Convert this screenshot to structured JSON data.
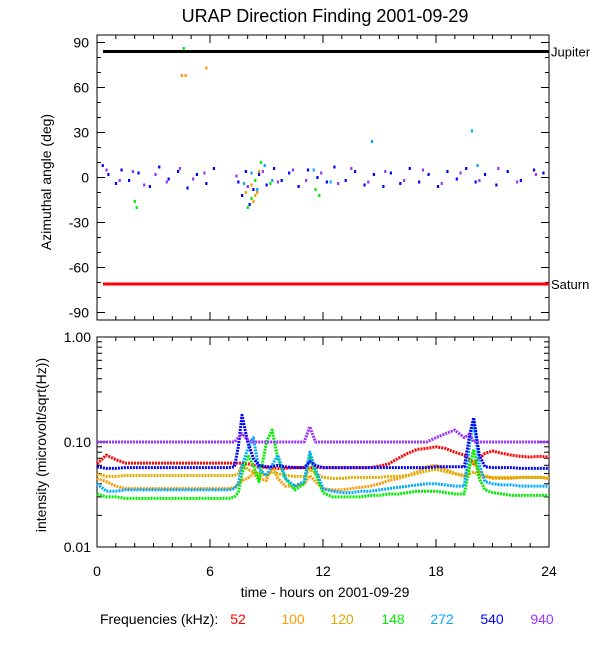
{
  "chart_data": [
    {
      "type": "scatter",
      "title": "URAP Direction Finding  2001-09-29",
      "xlabel": "",
      "ylabel": "Azimuthal angle (deg)",
      "xlim": [
        0,
        24
      ],
      "ylim": [
        -95,
        95
      ],
      "xticks": [
        0,
        6,
        12,
        18,
        24
      ],
      "yticks": [
        90,
        60,
        30,
        0,
        -30,
        -60,
        -90
      ],
      "ytick_labels": [
        "90",
        "60",
        "30",
        "0",
        "-30",
        "-60",
        "-90"
      ],
      "reference_lines": [
        {
          "name": "Jupiter",
          "y": 84,
          "color": "#000000"
        },
        {
          "name": "Saturn",
          "y": -71,
          "color": "#ff0000"
        }
      ],
      "series": [
        {
          "name": "540",
          "color": "#0000ff",
          "points": [
            [
              0.3,
              8
            ],
            [
              0.6,
              2
            ],
            [
              1.0,
              -4
            ],
            [
              1.3,
              5
            ],
            [
              1.7,
              -2
            ],
            [
              2.2,
              3
            ],
            [
              2.8,
              -6
            ],
            [
              3.3,
              7
            ],
            [
              3.8,
              -1
            ],
            [
              4.3,
              4
            ],
            [
              4.8,
              -7
            ],
            [
              5.3,
              2
            ],
            [
              5.8,
              -4
            ],
            [
              6.2,
              6
            ],
            [
              7.5,
              -3
            ],
            [
              7.7,
              -12
            ],
            [
              7.9,
              4
            ],
            [
              8.1,
              -18
            ],
            [
              8.3,
              -8
            ],
            [
              8.6,
              2
            ],
            [
              9.0,
              -5
            ],
            [
              9.4,
              6
            ],
            [
              9.8,
              -2
            ],
            [
              10.2,
              3
            ],
            [
              10.7,
              -6
            ],
            [
              11.2,
              5
            ],
            [
              11.7,
              0
            ],
            [
              12.2,
              -3
            ],
            [
              12.6,
              7
            ],
            [
              13.2,
              -2
            ],
            [
              13.7,
              4
            ],
            [
              14.2,
              -5
            ],
            [
              14.7,
              2
            ],
            [
              15.2,
              -6
            ],
            [
              15.6,
              3
            ],
            [
              16.1,
              -4
            ],
            [
              16.6,
              6
            ],
            [
              17.1,
              -3
            ],
            [
              17.6,
              2
            ],
            [
              18.1,
              -6
            ],
            [
              18.6,
              4
            ],
            [
              19.1,
              -1
            ],
            [
              19.6,
              6
            ],
            [
              20.1,
              -3
            ],
            [
              20.6,
              2
            ],
            [
              21.2,
              -5
            ],
            [
              21.8,
              4
            ],
            [
              22.5,
              -2
            ],
            [
              23.2,
              5
            ],
            [
              23.7,
              3
            ]
          ]
        },
        {
          "name": "940",
          "color": "#9933ff",
          "points": [
            [
              0.5,
              5
            ],
            [
              1.2,
              -2
            ],
            [
              1.9,
              4
            ],
            [
              2.5,
              -5
            ],
            [
              3.1,
              2
            ],
            [
              3.7,
              -3
            ],
            [
              4.4,
              6
            ],
            [
              5.1,
              -1
            ],
            [
              5.7,
              3
            ],
            [
              7.4,
              1
            ],
            [
              8.0,
              -6
            ],
            [
              8.8,
              4
            ],
            [
              9.6,
              -3
            ],
            [
              10.4,
              5
            ],
            [
              11.1,
              -2
            ],
            [
              11.9,
              3
            ],
            [
              12.8,
              -4
            ],
            [
              13.5,
              6
            ],
            [
              14.4,
              -3
            ],
            [
              15.3,
              4
            ],
            [
              16.3,
              -2
            ],
            [
              17.3,
              5
            ],
            [
              18.3,
              -4
            ],
            [
              19.3,
              3
            ],
            [
              20.3,
              -2
            ],
            [
              21.3,
              6
            ],
            [
              22.3,
              -3
            ],
            [
              23.3,
              2
            ]
          ]
        },
        {
          "name": "272",
          "color": "#00aaff",
          "points": [
            [
              7.8,
              -4
            ],
            [
              8.2,
              3
            ],
            [
              8.5,
              -8
            ],
            [
              8.9,
              8
            ],
            [
              9.3,
              -2
            ],
            [
              11.5,
              5
            ],
            [
              12.4,
              -3
            ],
            [
              14.6,
              24
            ],
            [
              19.9,
              31
            ],
            [
              20.2,
              8
            ]
          ]
        },
        {
          "name": "148",
          "color": "#00ee00",
          "points": [
            [
              2.0,
              -16
            ],
            [
              2.1,
              -20
            ],
            [
              4.6,
              86
            ],
            [
              8.0,
              -20
            ],
            [
              8.2,
              -14
            ],
            [
              8.4,
              -2
            ],
            [
              8.7,
              10
            ],
            [
              9.2,
              -4
            ],
            [
              11.6,
              -8
            ],
            [
              11.8,
              -12
            ]
          ]
        },
        {
          "name": "120",
          "color": "#ddaa00",
          "points": [
            [
              7.9,
              -10
            ],
            [
              8.2,
              -5
            ],
            [
              8.4,
              -12
            ],
            [
              8.6,
              4
            ]
          ]
        },
        {
          "name": "100",
          "color": "#ff9900",
          "points": [
            [
              4.5,
              68
            ],
            [
              4.7,
              68
            ],
            [
              5.8,
              73
            ],
            [
              8.3,
              -16
            ],
            [
              8.5,
              -10
            ]
          ]
        },
        {
          "name": "52",
          "color": "#ff0000",
          "points": []
        }
      ]
    },
    {
      "type": "line",
      "title": "",
      "xlabel": "time - hours on 2001-09-29",
      "ylabel": "intensity (microvolt/sqrt(Hz))",
      "yscale": "log",
      "xlim": [
        0,
        24
      ],
      "ylim": [
        0.01,
        1.0
      ],
      "xticks": [
        0,
        6,
        12,
        18,
        24
      ],
      "xtick_labels": [
        "0",
        "6",
        "12",
        "18",
        "24"
      ],
      "yticks": [
        1.0,
        0.1,
        0.01
      ],
      "ytick_labels": [
        "1.00",
        "0.10",
        "0.01"
      ],
      "x": [
        0,
        0.5,
        1,
        1.5,
        2,
        2.5,
        3,
        3.5,
        4,
        4.5,
        5,
        5.5,
        6,
        6.5,
        7,
        7.3,
        7.5,
        7.7,
        8,
        8.3,
        8.6,
        9,
        9.3,
        9.6,
        10,
        10.5,
        11,
        11.3,
        11.6,
        12,
        12.5,
        13,
        13.5,
        14,
        14.5,
        15,
        15.5,
        16,
        16.5,
        17,
        17.5,
        18,
        18.5,
        19,
        19.5,
        19.8,
        20,
        20.3,
        20.6,
        21,
        21.5,
        22,
        22.5,
        23,
        23.5,
        24
      ],
      "series": [
        {
          "name": "52",
          "color": "#ff0000",
          "values": [
            0.062,
            0.075,
            0.068,
            0.063,
            0.063,
            0.063,
            0.063,
            0.063,
            0.063,
            0.063,
            0.063,
            0.063,
            0.063,
            0.063,
            0.063,
            0.063,
            0.063,
            0.063,
            0.062,
            0.06,
            0.058,
            0.057,
            0.056,
            0.056,
            0.056,
            0.057,
            0.057,
            0.057,
            0.057,
            0.057,
            0.057,
            0.057,
            0.057,
            0.057,
            0.057,
            0.059,
            0.062,
            0.07,
            0.078,
            0.085,
            0.087,
            0.09,
            0.087,
            0.08,
            0.075,
            0.068,
            0.062,
            0.07,
            0.078,
            0.082,
            0.078,
            0.075,
            0.073,
            0.072,
            0.073,
            0.072
          ]
        },
        {
          "name": "100",
          "color": "#ff9900",
          "values": [
            0.045,
            0.042,
            0.038,
            0.036,
            0.036,
            0.036,
            0.036,
            0.036,
            0.036,
            0.036,
            0.036,
            0.036,
            0.036,
            0.036,
            0.036,
            0.037,
            0.04,
            0.043,
            0.045,
            0.05,
            0.045,
            0.043,
            0.06,
            0.045,
            0.038,
            0.038,
            0.04,
            0.048,
            0.042,
            0.036,
            0.035,
            0.035,
            0.036,
            0.037,
            0.038,
            0.04,
            0.043,
            0.045,
            0.048,
            0.052,
            0.058,
            0.06,
            0.055,
            0.05,
            0.047,
            0.06,
            0.065,
            0.052,
            0.047,
            0.045,
            0.045,
            0.045,
            0.046,
            0.046,
            0.046,
            0.045
          ]
        },
        {
          "name": "120",
          "color": "#ddaa00",
          "values": [
            0.05,
            0.047,
            0.047,
            0.048,
            0.048,
            0.048,
            0.048,
            0.048,
            0.048,
            0.048,
            0.048,
            0.048,
            0.048,
            0.048,
            0.048,
            0.048,
            0.05,
            0.06,
            0.055,
            0.052,
            0.05,
            0.048,
            0.052,
            0.05,
            0.048,
            0.047,
            0.047,
            0.055,
            0.05,
            0.046,
            0.045,
            0.045,
            0.046,
            0.046,
            0.046,
            0.046,
            0.047,
            0.047,
            0.048,
            0.05,
            0.053,
            0.055,
            0.052,
            0.05,
            0.048,
            0.05,
            0.052,
            0.048,
            0.047,
            0.046,
            0.046,
            0.046,
            0.046,
            0.046,
            0.046,
            0.045
          ]
        },
        {
          "name": "148",
          "color": "#00ee00",
          "values": [
            0.032,
            0.03,
            0.03,
            0.029,
            0.029,
            0.029,
            0.029,
            0.029,
            0.029,
            0.029,
            0.029,
            0.029,
            0.029,
            0.029,
            0.029,
            0.03,
            0.033,
            0.05,
            0.075,
            0.06,
            0.042,
            0.1,
            0.13,
            0.07,
            0.045,
            0.035,
            0.04,
            0.075,
            0.05,
            0.033,
            0.03,
            0.03,
            0.03,
            0.03,
            0.031,
            0.031,
            0.032,
            0.032,
            0.033,
            0.034,
            0.034,
            0.034,
            0.033,
            0.032,
            0.032,
            0.06,
            0.085,
            0.045,
            0.035,
            0.033,
            0.032,
            0.031,
            0.031,
            0.031,
            0.031,
            0.031
          ]
        },
        {
          "name": "272",
          "color": "#00aaff",
          "values": [
            0.04,
            0.034,
            0.034,
            0.035,
            0.035,
            0.035,
            0.035,
            0.035,
            0.035,
            0.035,
            0.035,
            0.035,
            0.035,
            0.035,
            0.035,
            0.036,
            0.04,
            0.06,
            0.085,
            0.11,
            0.055,
            0.048,
            0.06,
            0.075,
            0.045,
            0.038,
            0.042,
            0.08,
            0.055,
            0.036,
            0.034,
            0.033,
            0.033,
            0.034,
            0.034,
            0.035,
            0.036,
            0.037,
            0.038,
            0.039,
            0.04,
            0.04,
            0.039,
            0.038,
            0.038,
            0.1,
            0.16,
            0.06,
            0.042,
            0.04,
            0.039,
            0.039,
            0.038,
            0.038,
            0.038,
            0.038
          ]
        },
        {
          "name": "540",
          "color": "#0000ff",
          "values": [
            0.058,
            0.056,
            0.056,
            0.057,
            0.057,
            0.057,
            0.057,
            0.057,
            0.057,
            0.057,
            0.057,
            0.057,
            0.057,
            0.057,
            0.057,
            0.058,
            0.09,
            0.18,
            0.1,
            0.07,
            0.06,
            0.058,
            0.058,
            0.06,
            0.058,
            0.057,
            0.057,
            0.065,
            0.06,
            0.057,
            0.057,
            0.057,
            0.057,
            0.057,
            0.057,
            0.057,
            0.057,
            0.057,
            0.057,
            0.057,
            0.057,
            0.058,
            0.058,
            0.058,
            0.058,
            0.12,
            0.17,
            0.075,
            0.058,
            0.057,
            0.057,
            0.057,
            0.056,
            0.056,
            0.056,
            0.056
          ]
        },
        {
          "name": "940",
          "color": "#9933ff",
          "values": [
            0.1,
            0.1,
            0.1,
            0.1,
            0.1,
            0.1,
            0.1,
            0.1,
            0.1,
            0.1,
            0.1,
            0.1,
            0.1,
            0.1,
            0.1,
            0.1,
            0.11,
            0.12,
            0.105,
            0.1,
            0.1,
            0.1,
            0.1,
            0.1,
            0.1,
            0.1,
            0.1,
            0.14,
            0.1,
            0.1,
            0.1,
            0.1,
            0.1,
            0.1,
            0.1,
            0.1,
            0.1,
            0.1,
            0.1,
            0.1,
            0.1,
            0.11,
            0.12,
            0.13,
            0.11,
            0.12,
            0.1,
            0.1,
            0.1,
            0.1,
            0.1,
            0.1,
            0.1,
            0.1,
            0.1,
            0.1
          ]
        }
      ]
    }
  ],
  "legend": {
    "label": "Frequencies (kHz):",
    "items": [
      {
        "label": "52",
        "color": "#ff0000"
      },
      {
        "label": "100",
        "color": "#ff9900"
      },
      {
        "label": "120",
        "color": "#ddaa00"
      },
      {
        "label": "148",
        "color": "#00ee00"
      },
      {
        "label": "272",
        "color": "#00aaff"
      },
      {
        "label": "540",
        "color": "#0000ff"
      },
      {
        "label": "940",
        "color": "#9933ff"
      }
    ]
  }
}
